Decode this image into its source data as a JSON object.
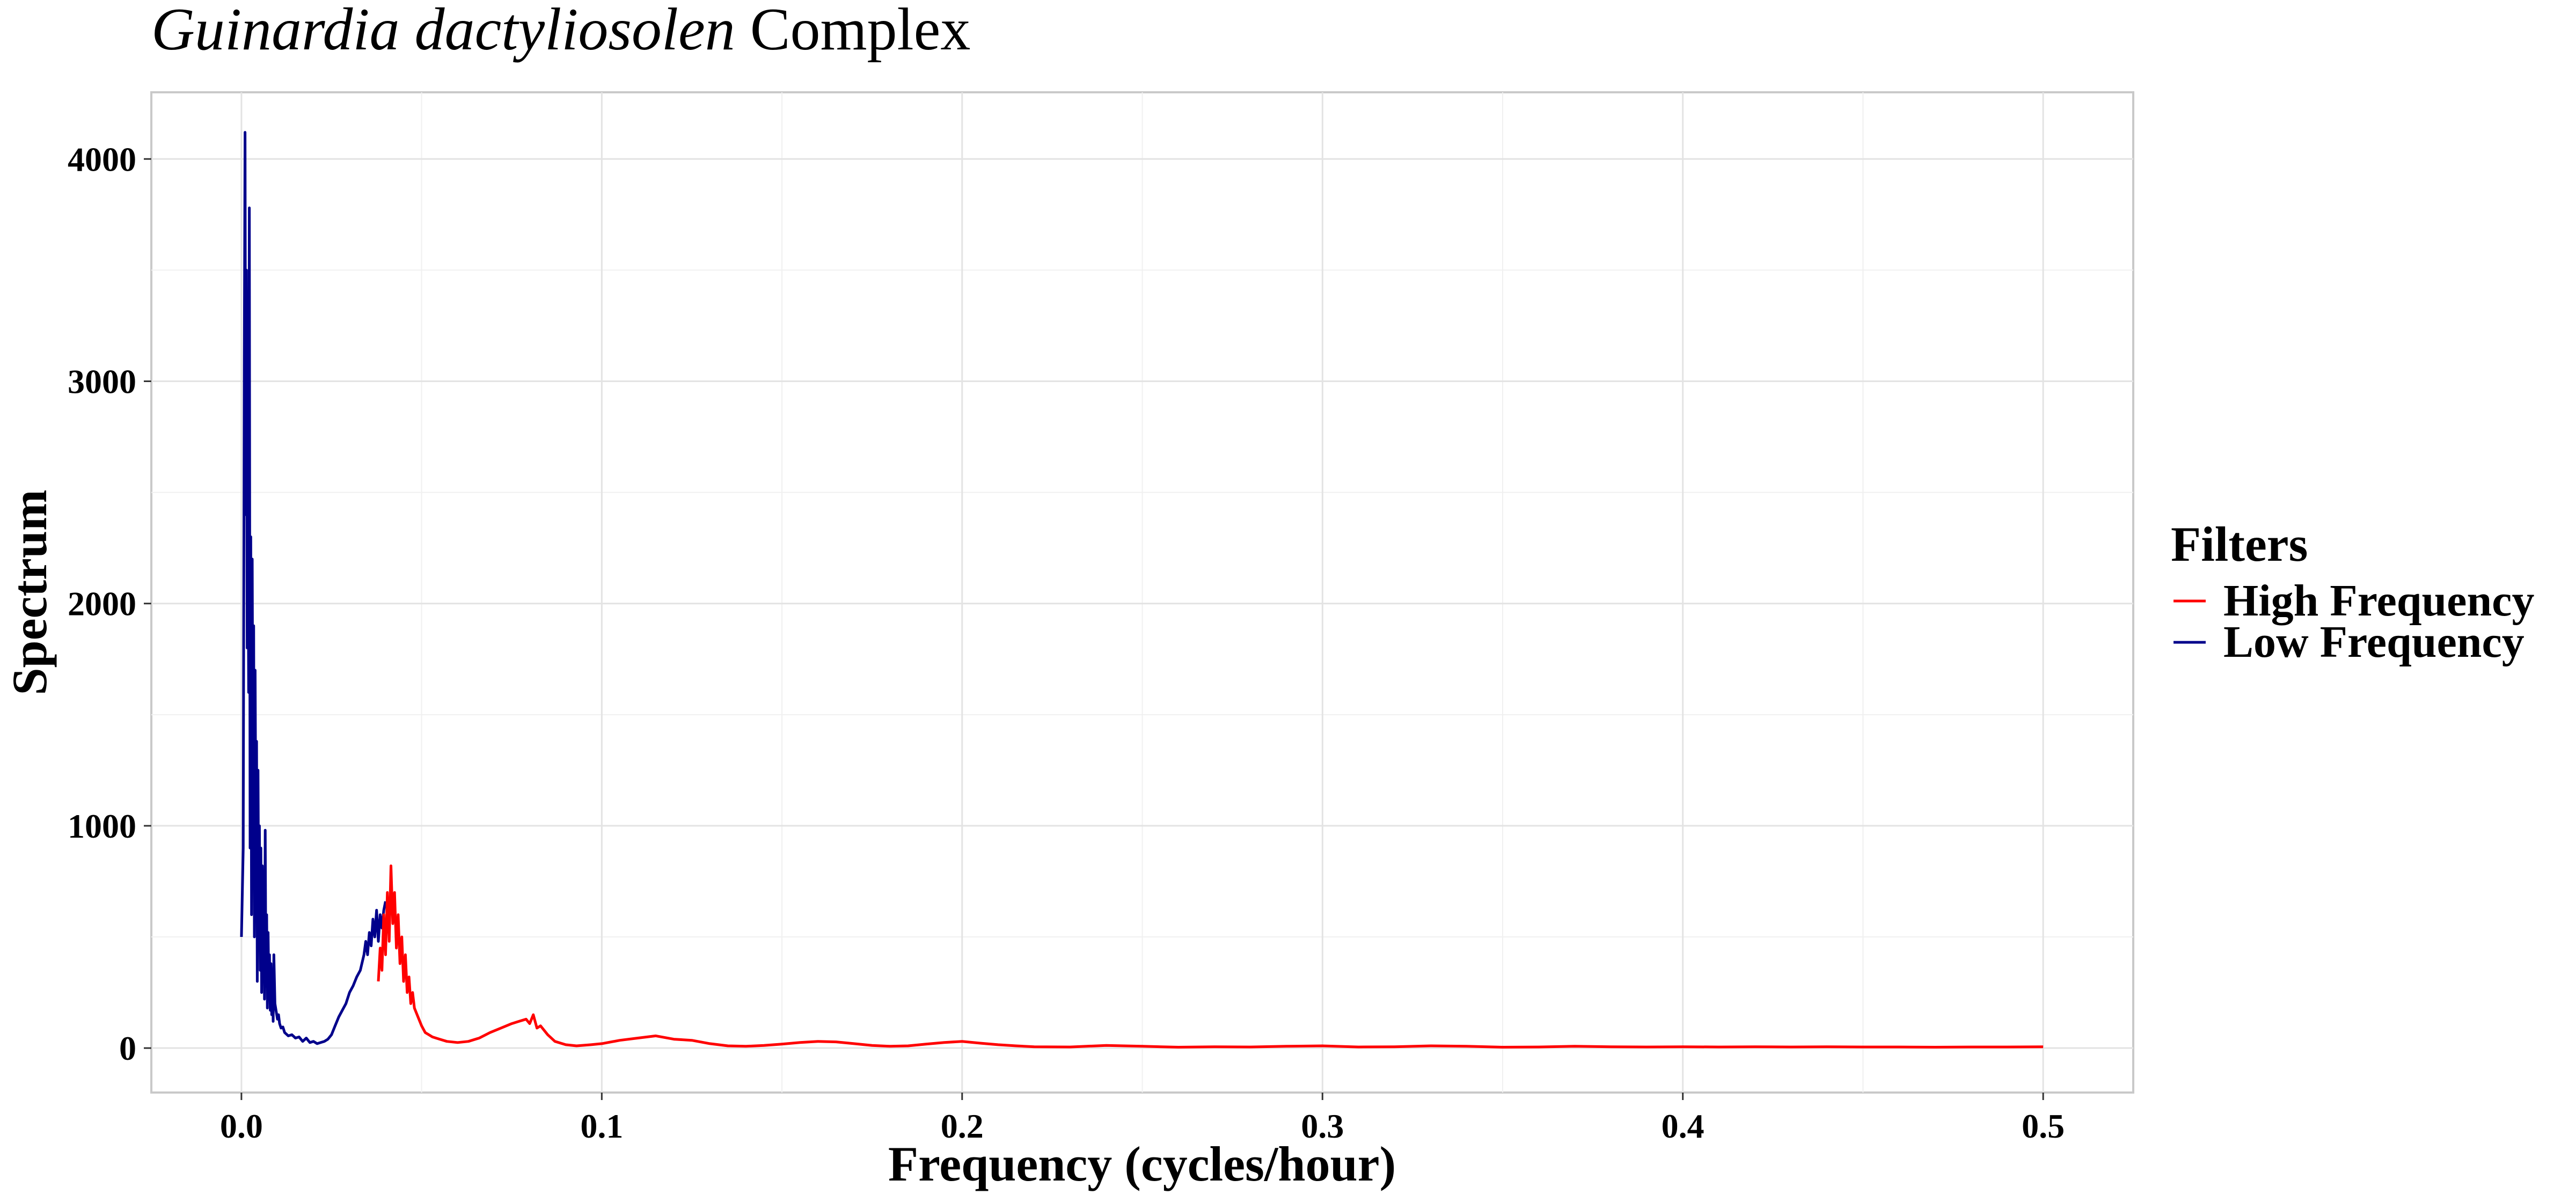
{
  "chart_data": {
    "type": "line",
    "title_italic": "Guinardia dactyliosolen",
    "title_rest": "Complex",
    "xlabel": "Frequency (cycles/hour)",
    "ylabel": "Spectrum",
    "xlim": [
      -0.025,
      0.525
    ],
    "ylim": [
      -200,
      4300
    ],
    "xticks": [
      0.0,
      0.1,
      0.2,
      0.3,
      0.4,
      0.5
    ],
    "xtick_labels": [
      "0.0",
      "0.1",
      "0.2",
      "0.3",
      "0.4",
      "0.5"
    ],
    "yticks": [
      0,
      1000,
      2000,
      3000,
      4000
    ],
    "ytick_labels": [
      "0",
      "1000",
      "2000",
      "3000",
      "4000"
    ],
    "grid": true,
    "legend": {
      "title": "Filters",
      "placement": "right",
      "entries": [
        {
          "label": "High Frequency",
          "color": "#ff0000"
        },
        {
          "label": "Low Frequency",
          "color": "#00008b"
        }
      ]
    },
    "series": [
      {
        "name": "Low Frequency",
        "color": "#00008b",
        "x": [
          0.0,
          0.0005,
          0.0008,
          0.001,
          0.0012,
          0.0014,
          0.0016,
          0.0018,
          0.002,
          0.0022,
          0.0024,
          0.0026,
          0.0028,
          0.003,
          0.0032,
          0.0034,
          0.0036,
          0.0038,
          0.004,
          0.0042,
          0.0044,
          0.0046,
          0.0048,
          0.005,
          0.0052,
          0.0054,
          0.0056,
          0.0058,
          0.006,
          0.0062,
          0.0064,
          0.0066,
          0.0068,
          0.007,
          0.0072,
          0.0074,
          0.0076,
          0.0078,
          0.008,
          0.0082,
          0.0084,
          0.0086,
          0.0088,
          0.009,
          0.0093,
          0.0096,
          0.01,
          0.0103,
          0.0106,
          0.011,
          0.0115,
          0.012,
          0.013,
          0.014,
          0.015,
          0.016,
          0.017,
          0.018,
          0.019,
          0.02,
          0.021,
          0.022,
          0.023,
          0.024,
          0.025,
          0.026,
          0.027,
          0.028,
          0.029,
          0.03,
          0.031,
          0.032,
          0.033,
          0.034,
          0.0345,
          0.035,
          0.0355,
          0.036,
          0.0365,
          0.037,
          0.0375,
          0.038,
          0.0385,
          0.039,
          0.0395,
          0.04
        ],
        "y": [
          500,
          900,
          3100,
          4120,
          2400,
          3500,
          1800,
          2570,
          1600,
          3780,
          900,
          2300,
          600,
          2200,
          1100,
          1900,
          500,
          1700,
          1000,
          1380,
          300,
          1250,
          600,
          1000,
          350,
          900,
          250,
          820,
          400,
          700,
          220,
          980,
          300,
          600,
          180,
          520,
          260,
          420,
          170,
          380,
          150,
          340,
          120,
          420,
          200,
          170,
          130,
          150,
          110,
          90,
          95,
          70,
          55,
          60,
          45,
          50,
          30,
          45,
          25,
          30,
          20,
          25,
          30,
          40,
          60,
          100,
          140,
          170,
          200,
          250,
          280,
          320,
          350,
          420,
          480,
          420,
          520,
          460,
          580,
          500,
          620,
          480,
          600,
          540,
          620,
          660
        ]
      },
      {
        "name": "High Frequency",
        "color": "#ff0000",
        "x": [
          0.038,
          0.0385,
          0.039,
          0.0395,
          0.04,
          0.0405,
          0.041,
          0.0415,
          0.042,
          0.0425,
          0.043,
          0.0435,
          0.044,
          0.0445,
          0.045,
          0.0455,
          0.046,
          0.0465,
          0.047,
          0.0475,
          0.048,
          0.049,
          0.05,
          0.051,
          0.052,
          0.053,
          0.054,
          0.055,
          0.057,
          0.06,
          0.063,
          0.066,
          0.069,
          0.072,
          0.075,
          0.077,
          0.079,
          0.08,
          0.081,
          0.082,
          0.083,
          0.085,
          0.087,
          0.09,
          0.093,
          0.097,
          0.1,
          0.105,
          0.11,
          0.115,
          0.12,
          0.125,
          0.13,
          0.135,
          0.14,
          0.145,
          0.15,
          0.155,
          0.16,
          0.165,
          0.17,
          0.175,
          0.18,
          0.185,
          0.19,
          0.195,
          0.2,
          0.205,
          0.21,
          0.215,
          0.22,
          0.23,
          0.24,
          0.25,
          0.26,
          0.27,
          0.28,
          0.29,
          0.3,
          0.31,
          0.32,
          0.33,
          0.34,
          0.35,
          0.36,
          0.37,
          0.38,
          0.39,
          0.4,
          0.41,
          0.42,
          0.43,
          0.44,
          0.45,
          0.46,
          0.47,
          0.48,
          0.49,
          0.5
        ],
        "y": [
          300,
          450,
          350,
          600,
          420,
          700,
          480,
          820,
          560,
          700,
          450,
          600,
          380,
          500,
          300,
          420,
          250,
          320,
          200,
          250,
          180,
          140,
          100,
          70,
          60,
          50,
          45,
          40,
          30,
          25,
          30,
          45,
          70,
          90,
          110,
          120,
          130,
          110,
          150,
          90,
          100,
          60,
          30,
          15,
          10,
          15,
          20,
          35,
          45,
          55,
          40,
          35,
          20,
          10,
          8,
          12,
          18,
          25,
          30,
          28,
          20,
          12,
          8,
          10,
          18,
          25,
          30,
          22,
          15,
          10,
          6,
          5,
          12,
          8,
          4,
          6,
          5,
          8,
          10,
          5,
          6,
          10,
          8,
          4,
          5,
          8,
          6,
          5,
          6,
          5,
          6,
          5,
          6,
          5,
          5,
          4,
          5,
          5,
          6
        ]
      }
    ]
  }
}
